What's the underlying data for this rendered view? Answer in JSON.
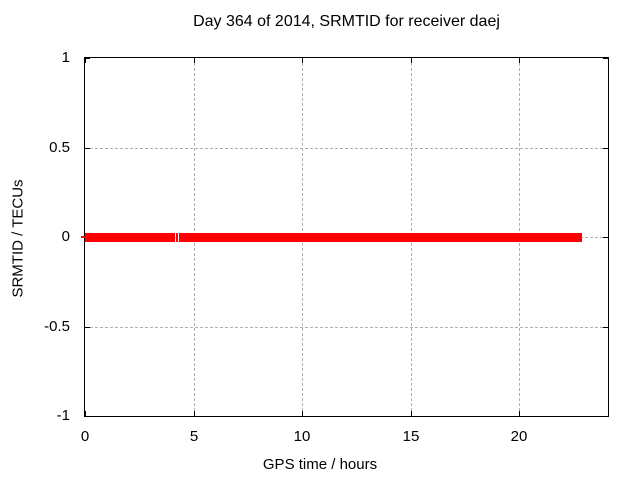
{
  "chart_data": {
    "type": "line",
    "title": "Day 364 of 2014, SRMTID for receiver daej",
    "xlabel": "GPS time / hours",
    "ylabel": "SRMTID / TECUs",
    "xlim": [
      0,
      24.1
    ],
    "ylim": [
      -1,
      1
    ],
    "xticks": {
      "values": [
        0,
        5,
        10,
        15,
        20
      ],
      "labels": [
        "0",
        "5",
        "10",
        "15",
        "20"
      ]
    },
    "yticks": {
      "values": [
        1,
        0.5,
        0,
        -0.5,
        -1
      ],
      "labels": [
        "1",
        "0.5",
        "0",
        "-0.5",
        "-1"
      ]
    },
    "grid": {
      "show": true,
      "style": "dashed"
    },
    "legend": {
      "show": false
    },
    "series": [
      {
        "name": "SRMTID",
        "color": "#ff0000",
        "marker": "thick-band",
        "segments": [
          {
            "x_start": 0.0,
            "x_end": 4.145,
            "y": 0
          },
          {
            "x_start": 4.19,
            "x_end": 4.275,
            "y": 0
          },
          {
            "x_start": 4.32,
            "x_end": 22.9,
            "y": 0
          }
        ]
      }
    ],
    "colors": {
      "series": "#ff0000",
      "grid": "#b0b0b0",
      "axis": "#000000",
      "background": "#ffffff",
      "text": "#000000"
    }
  }
}
